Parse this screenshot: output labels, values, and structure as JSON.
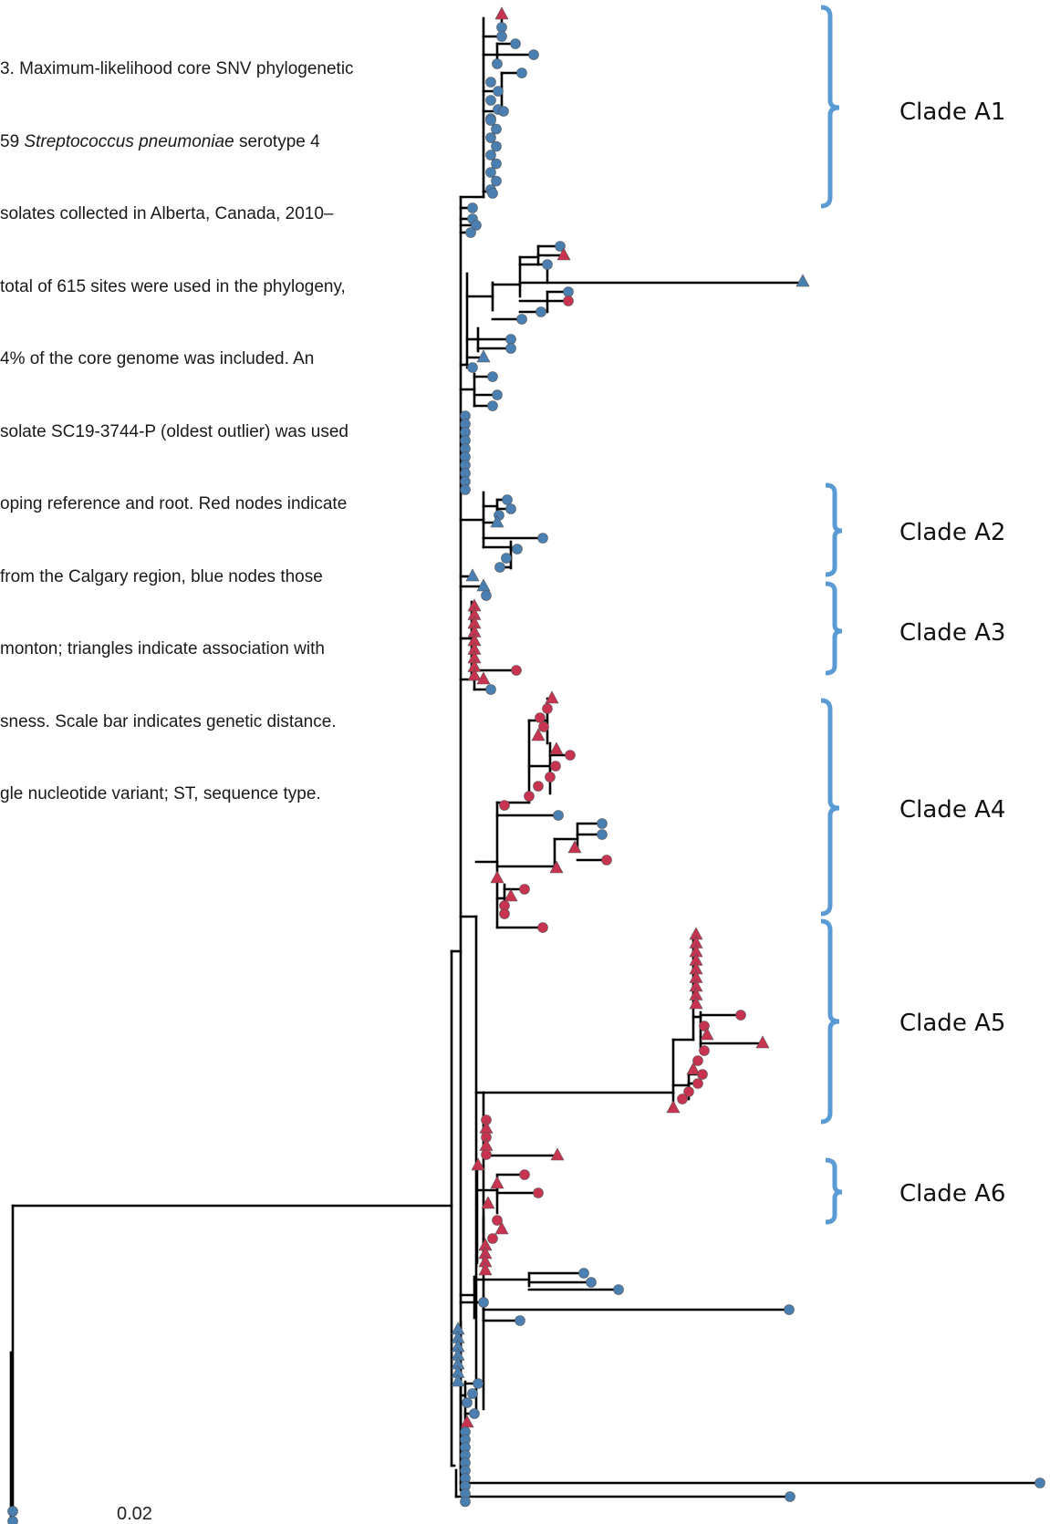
{
  "caption": {
    "lines": [
      "3. Maximum-likelihood core SNV phylogenetic",
      "59 ",
      "solates collected in Alberta, Canada, 2010–",
      "total of 615 sites were used in the phylogeny,",
      "4% of the core genome was included. An",
      "solate SC19-3744-P (oldest outlier) was used",
      "oping reference and root. Red nodes indicate",
      "from the Calgary region, blue nodes those",
      "monton; triangles indicate association with",
      "sness. Scale bar indicates genetic distance.",
      "gle nucleotide variant; ST, sequence type."
    ],
    "species": "Streptococcus pneumoniae",
    "species_suffix": " serotype 4"
  },
  "clades": [
    {
      "label": "Clade A1"
    },
    {
      "label": "Clade A2"
    },
    {
      "label": "Clade A3"
    },
    {
      "label": "Clade A4"
    },
    {
      "label": "Clade A5"
    },
    {
      "label": "Clade A6"
    }
  ],
  "scale_bar": {
    "label": "0.02"
  },
  "legend_colors": {
    "calgary": "#c8334f",
    "edmonton": "#4a7fb2",
    "bracket": "#5b9bd5"
  }
}
